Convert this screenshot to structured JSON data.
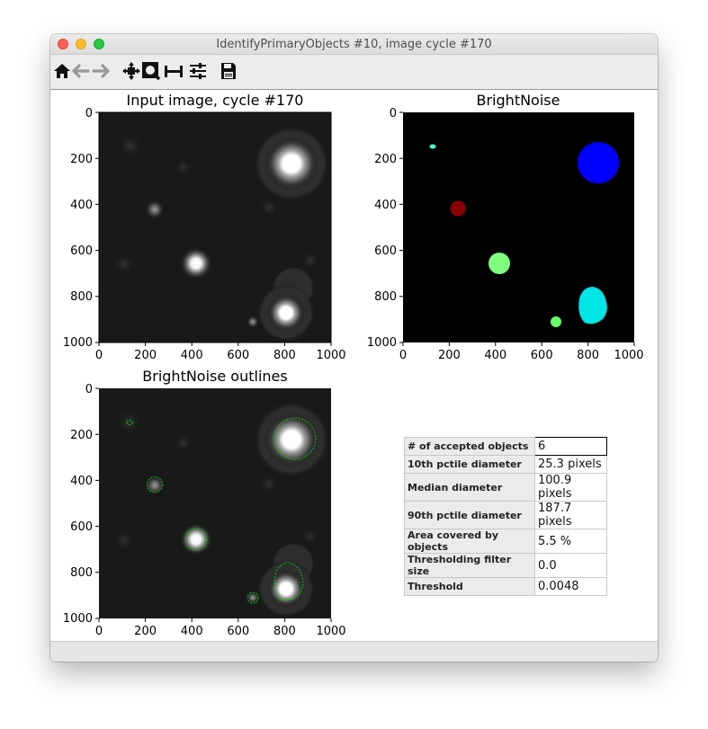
{
  "window": {
    "title": "IdentifyPrimaryObjects #10, image cycle #170"
  },
  "toolbar": {
    "buttons": [
      {
        "name": "home-icon",
        "label": "Home"
      },
      {
        "name": "back-icon",
        "label": "Back"
      },
      {
        "name": "forward-icon",
        "label": "Forward"
      },
      {
        "name": "pan-icon",
        "label": "Pan"
      },
      {
        "name": "zoom-icon",
        "label": "Zoom"
      },
      {
        "name": "subplots-icon",
        "label": "Subplots"
      },
      {
        "name": "configure-icon",
        "label": "Configure"
      },
      {
        "name": "save-icon",
        "label": "Save"
      }
    ]
  },
  "plots": {
    "input": {
      "title": "Input image, cycle #170"
    },
    "labels": {
      "title": "BrightNoise"
    },
    "outlines": {
      "title": "BrightNoise outlines"
    },
    "ticks": [
      "0",
      "200",
      "400",
      "600",
      "800",
      "1000"
    ]
  },
  "stats": [
    {
      "label": "# of accepted objects",
      "value": "6"
    },
    {
      "label": "10th pctile diameter",
      "value": "25.3 pixels"
    },
    {
      "label": "Median diameter",
      "value": "100.9 pixels"
    },
    {
      "label": "90th pctile diameter",
      "value": "187.7 pixels"
    },
    {
      "label": "Area covered by objects",
      "value": "5.5 %"
    },
    {
      "label": "Thresholding filter size",
      "value": "0.0"
    },
    {
      "label": "Threshold",
      "value": "0.0048"
    }
  ],
  "colors": {
    "object_1": "#0000ff",
    "object_2": "#00e5e5",
    "object_3": "#7fff7f",
    "object_4": "#8b0000",
    "object_5": "#66ff66",
    "object_6": "#4dffd2",
    "outline": "#00cc00"
  }
}
